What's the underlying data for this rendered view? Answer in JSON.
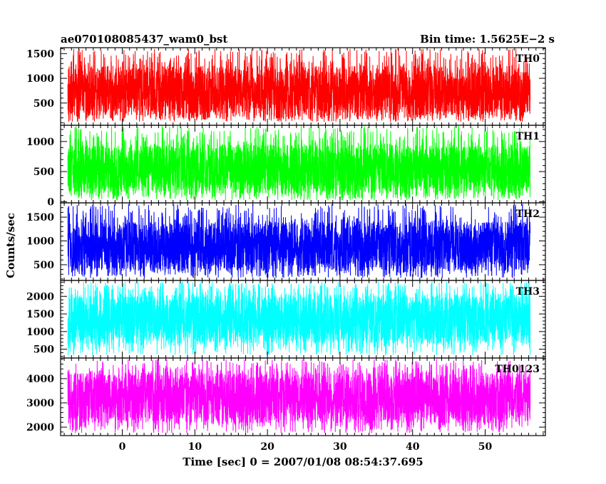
{
  "header": {
    "title": "ae070108085437_wam0_bst",
    "bin_time": "Bin time: 1.5625E−2 s"
  },
  "chart_data": {
    "type": "line",
    "xlabel": "Time [sec] 0 = 2007/01/08 08:54:37.695",
    "ylabel": "Counts/sec",
    "xlim": [
      -8.5,
      58.3
    ],
    "x_ticks": [
      0,
      10,
      20,
      30,
      40,
      50
    ],
    "x_data_range": [
      -7.5,
      56.2
    ],
    "panels": [
      {
        "name": "TH0",
        "color": "#ff0000",
        "ylim": [
          50,
          1620
        ],
        "y_ticks": [
          500,
          1000,
          1500
        ],
        "typical_range": [
          220,
          1250
        ],
        "peak_max": 1600,
        "trough_min": 120
      },
      {
        "name": "TH1",
        "color": "#00ff00",
        "ylim": [
          -20,
          1270
        ],
        "y_ticks": [
          0,
          500,
          1000
        ],
        "typical_range": [
          130,
          950
        ],
        "peak_max": 1260,
        "trough_min": 20
      },
      {
        "name": "TH2",
        "color": "#0000ff",
        "ylim": [
          170,
          1800
        ],
        "y_ticks": [
          500,
          1000,
          1500
        ],
        "typical_range": [
          380,
          1400
        ],
        "peak_max": 1780,
        "trough_min": 220
      },
      {
        "name": "TH3",
        "color": "#00ffff",
        "ylim": [
          250,
          2450
        ],
        "y_ticks": [
          500,
          1000,
          1500,
          2000
        ],
        "typical_range": [
          650,
          2050
        ],
        "peak_max": 2420,
        "trough_min": 320
      },
      {
        "name": "TH0123",
        "color": "#ff00ff",
        "ylim": [
          1650,
          4850
        ],
        "y_ticks": [
          2000,
          3000,
          4000
        ],
        "typical_range": [
          2150,
          4250
        ],
        "peak_max": 4800,
        "trough_min": 1750
      }
    ]
  }
}
